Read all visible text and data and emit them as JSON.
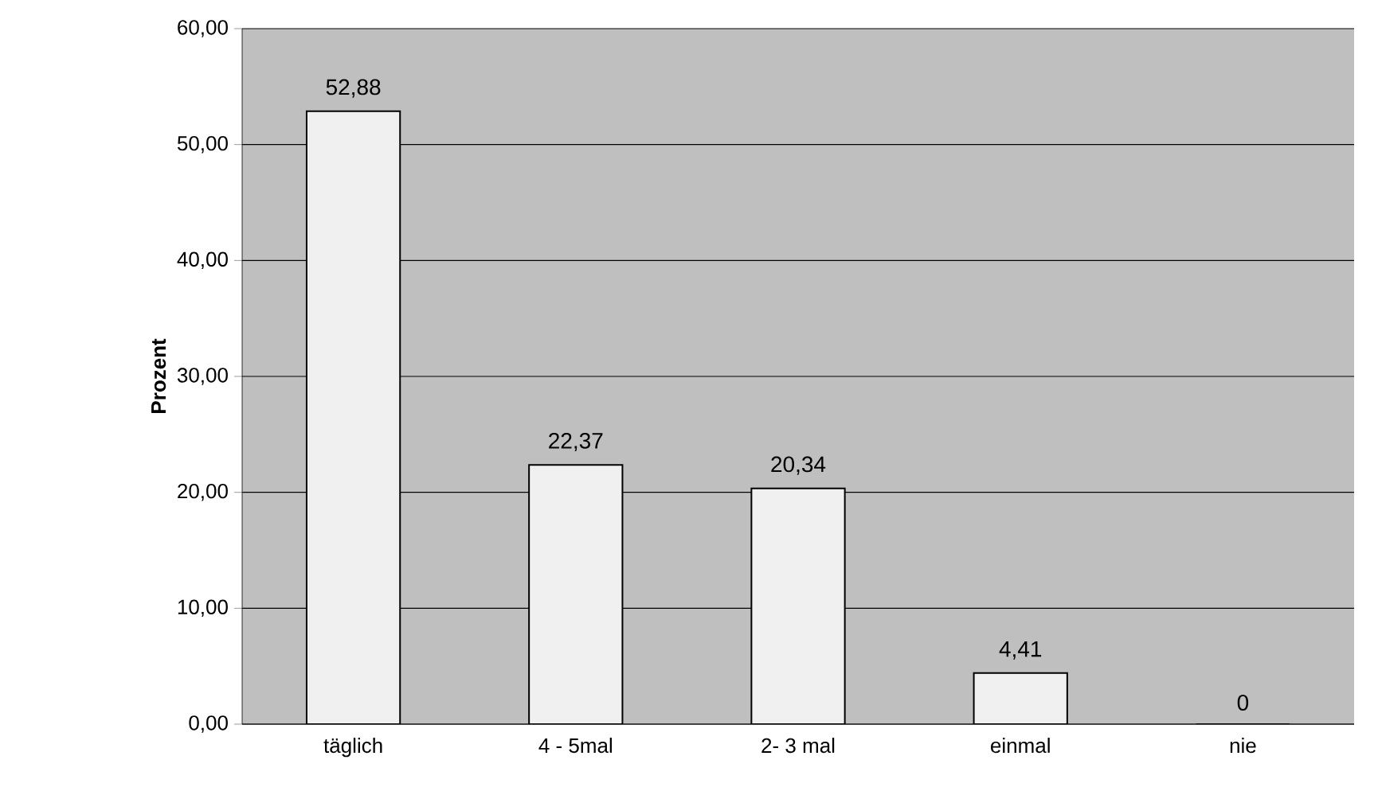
{
  "chart_data": {
    "type": "bar",
    "ylabel": "Prozent",
    "categories": [
      "täglich",
      "4 - 5mal",
      "2- 3 mal",
      "einmal",
      "nie"
    ],
    "values": [
      52.88,
      22.37,
      20.34,
      4.41,
      0
    ],
    "value_labels": [
      "52,88",
      "22,37",
      "20,34",
      "4,41",
      "0"
    ],
    "color": "#f0f0f0",
    "ylim": [
      0,
      60
    ],
    "yticks": [
      {
        "value": 0,
        "label": "0,00"
      },
      {
        "value": 10,
        "label": "10,00"
      },
      {
        "value": 20,
        "label": "20,00"
      },
      {
        "value": 30,
        "label": "30,00"
      },
      {
        "value": 40,
        "label": "40,00"
      },
      {
        "value": 50,
        "label": "50,00"
      },
      {
        "value": 60,
        "label": "60,00"
      }
    ],
    "grid": "y"
  }
}
